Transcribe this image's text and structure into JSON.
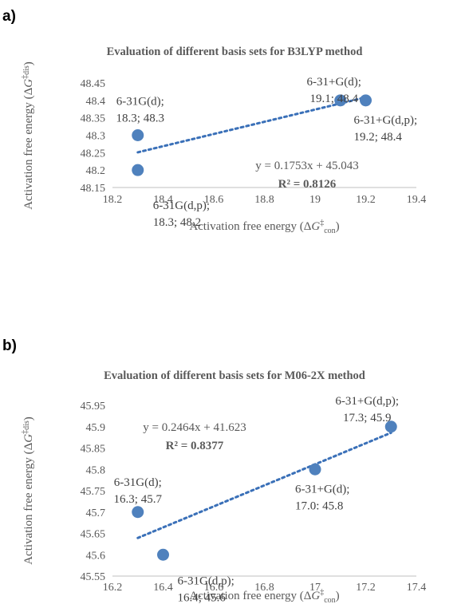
{
  "chart_data": [
    {
      "panel_label": "a)",
      "type": "scatter",
      "title": "Evaluation of different basis sets for B3LYP method",
      "xlabel_main": "Activation free energy (Δ",
      "xlabel_g": "G",
      "xlabel_sup": "‡",
      "xlabel_sub": "con",
      "xlabel_close": ")",
      "ylabel_main": "Activation free energy (Δ",
      "ylabel_g": "G",
      "ylabel_sup": "‡",
      "ylabel_sub": "dis",
      "ylabel_close": ")",
      "xlim": [
        18.2,
        19.4
      ],
      "ylim": [
        48.15,
        48.45
      ],
      "xticks": [
        "18.2",
        "18.4",
        "18.6",
        "18.8",
        "19",
        "19.2",
        "19.4"
      ],
      "yticks": [
        "48.15",
        "48.2",
        "48.25",
        "48.3",
        "48.35",
        "48.4",
        "48.45"
      ],
      "points": [
        {
          "x": 18.3,
          "y": 48.3,
          "label1": "6-31G(d);",
          "label2": "18.3; 48.3"
        },
        {
          "x": 18.3,
          "y": 48.2,
          "label1": "6-31G(d,p);",
          "label2": "18.3; 48.2"
        },
        {
          "x": 19.1,
          "y": 48.4,
          "label1": "6-31+G(d);",
          "label2": "19.1; 48.4"
        },
        {
          "x": 19.2,
          "y": 48.4,
          "label1": "6-31+G(d,p);",
          "label2": "19.2; 48.4"
        }
      ],
      "trendline": {
        "slope": 0.1753,
        "intercept": 45.043,
        "x_range": [
          18.3,
          19.2
        ]
      },
      "equation": "y = 0.1753x + 45.043",
      "r2": "R² = 0.8126",
      "grid": false,
      "legend": "none"
    },
    {
      "panel_label": "b)",
      "type": "scatter",
      "title": "Evaluation of different basis sets for M06-2X method",
      "xlabel_main": "Activation free energy (Δ",
      "xlabel_g": "G",
      "xlabel_sup": "‡",
      "xlabel_sub": "con",
      "xlabel_close": ")",
      "ylabel_main": "Activation free energy (Δ",
      "ylabel_g": "G",
      "ylabel_sup": "‡",
      "ylabel_sub": "dis",
      "ylabel_close": ")",
      "xlim": [
        16.2,
        17.4
      ],
      "ylim": [
        45.55,
        45.95
      ],
      "xticks": [
        "16.2",
        "16.4",
        "16.6",
        "16.8",
        "17",
        "17.2",
        "17.4"
      ],
      "yticks": [
        "45.55",
        "45.6",
        "45.65",
        "45.7",
        "45.75",
        "45.8",
        "45.85",
        "45.9",
        "45.95"
      ],
      "points": [
        {
          "x": 16.3,
          "y": 45.7,
          "label1": "6-31G(d);",
          "label2": "16.3; 45.7"
        },
        {
          "x": 16.4,
          "y": 45.6,
          "label1": "6-31G(d,p);",
          "label2": "16.4; 45.6"
        },
        {
          "x": 17.0,
          "y": 45.8,
          "label1": "6-31+G(d);",
          "label2": "17.0: 45.8"
        },
        {
          "x": 17.3,
          "y": 45.9,
          "label1": "6-31+G(d,p);",
          "label2": "17.3; 45.9"
        }
      ],
      "trendline": {
        "slope": 0.2464,
        "intercept": 41.623,
        "x_range": [
          16.3,
          17.3
        ]
      },
      "equation": "y = 0.2464x + 41.623",
      "r2": "R² = 0.8377",
      "grid": false,
      "legend": "none"
    }
  ],
  "colors": {
    "marker": "#4f81bd",
    "trendline": "#3a70b8",
    "axis": "#bfbfbf",
    "text": "#595959"
  }
}
